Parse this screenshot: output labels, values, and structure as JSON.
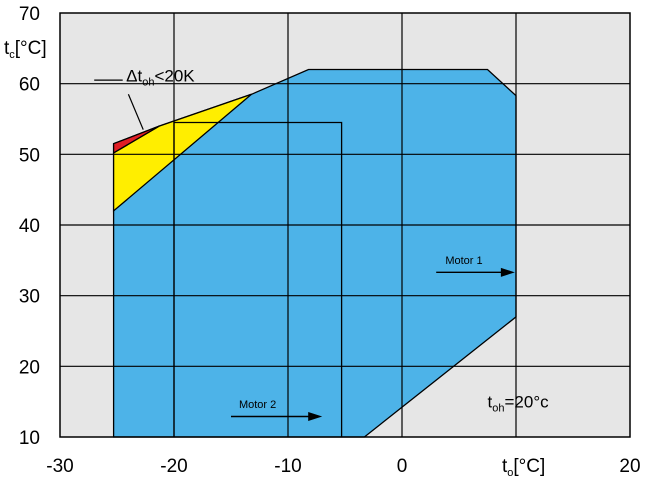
{
  "chart_data": {
    "type": "area",
    "title": "",
    "x_axis": {
      "label_main": "t",
      "label_sub": "o",
      "label_unit": "[°C]",
      "range": [
        -30,
        20
      ],
      "ticks": [
        -30,
        -20,
        -10,
        0,
        20
      ],
      "tick_labels": [
        "-30",
        "-20",
        "-10",
        "0",
        "20"
      ],
      "grid_at": [
        -20,
        -10,
        0,
        10
      ]
    },
    "y_axis": {
      "label_main": "t",
      "label_sub": "c",
      "label_unit": "[°C]",
      "range": [
        10,
        70
      ],
      "ticks": [
        10,
        20,
        30,
        40,
        50,
        60,
        70
      ],
      "tick_labels": [
        "10",
        "20",
        "30",
        "40",
        "50",
        "60",
        "70"
      ]
    },
    "grid": true,
    "background_color": "#e6e6e6",
    "regions": [
      {
        "name": "envelope",
        "color": "#4db3e8",
        "points": [
          [
            -25.3,
            10
          ],
          [
            -25.3,
            51.5
          ],
          [
            -21.3,
            54
          ],
          [
            -13.2,
            58.5
          ],
          [
            -8.2,
            62
          ],
          [
            7.5,
            62
          ],
          [
            10,
            58.3
          ],
          [
            10,
            27
          ],
          [
            -3.3,
            10
          ]
        ]
      },
      {
        "name": "dt_oh_lt_20K_zone",
        "color": "#ffee00",
        "points": [
          [
            -25.3,
            42
          ],
          [
            -25.3,
            50.2
          ],
          [
            -21.3,
            54
          ],
          [
            -13.2,
            58.5
          ]
        ]
      },
      {
        "name": "red_zone",
        "color": "#e01e25",
        "points": [
          [
            -25.3,
            50.2
          ],
          [
            -25.3,
            51.5
          ],
          [
            -21.3,
            54
          ]
        ]
      }
    ],
    "boundary_line": {
      "name": "motor_boundary",
      "points": [
        [
          -20,
          10
        ],
        [
          -20,
          54.5
        ],
        [
          -5.3,
          54.5
        ],
        [
          -5.3,
          10
        ]
      ]
    },
    "annotations": [
      {
        "id": "dt",
        "main": "Δt",
        "sub": "oh",
        "tail": "<20K",
        "pos": [
          -24.2,
          60.3
        ],
        "leader": [
          [
            -27,
            60.5
          ],
          [
            -24.5,
            60.5
          ]
        ],
        "leader2": [
          [
            -24,
            58.5
          ],
          [
            -22.7,
            53.5
          ]
        ]
      },
      {
        "id": "toh",
        "main": "t",
        "sub": "oh",
        "tail": "=20°c",
        "pos": [
          7.5,
          14.2
        ]
      }
    ],
    "arrows": [
      {
        "label": "Motor 1",
        "from": [
          3,
          33.3
        ],
        "to": [
          9.9,
          33.3
        ],
        "label_pos": [
          3.8,
          34.5
        ]
      },
      {
        "label": "Motor 2",
        "from": [
          -15,
          12.9
        ],
        "to": [
          -7,
          12.9
        ],
        "label_pos": [
          -14.3,
          14.1
        ]
      }
    ]
  }
}
